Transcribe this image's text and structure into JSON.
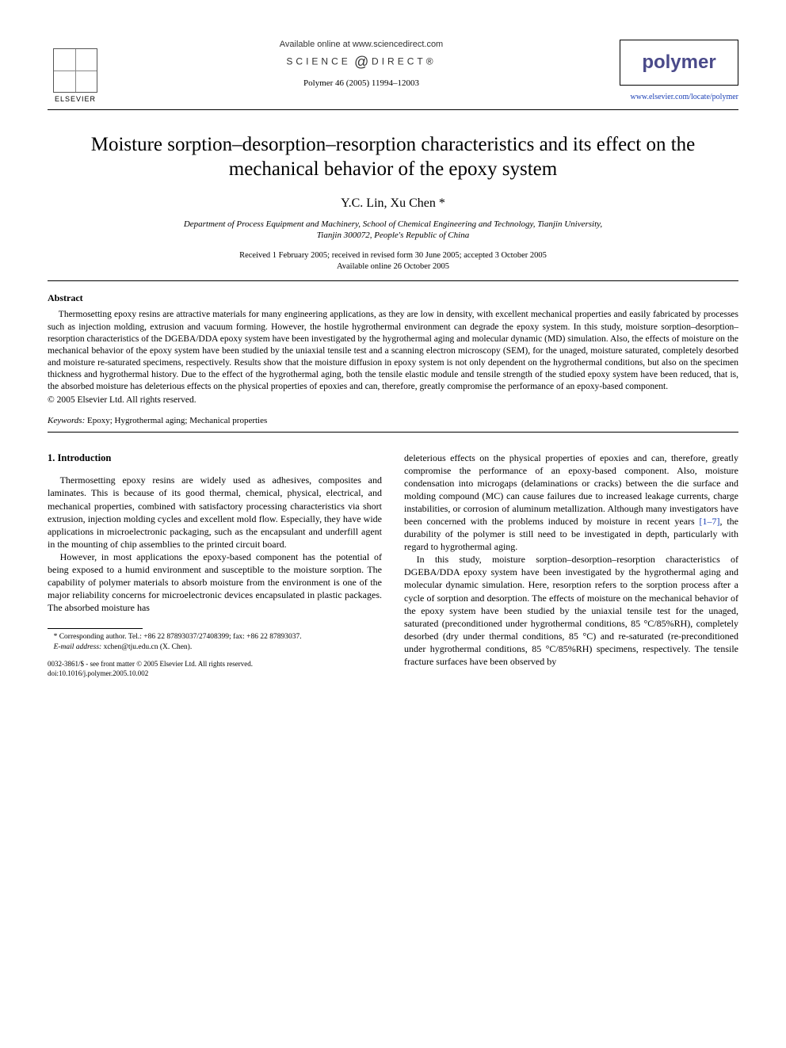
{
  "header": {
    "elsevier_label": "ELSEVIER",
    "available_online": "Available online at www.sciencedirect.com",
    "sd_left": "SCIENCE",
    "sd_right": "DIRECT®",
    "citation": "Polymer 46 (2005) 11994–12003",
    "journal_name": "polymer",
    "journal_url": "www.elsevier.com/locate/polymer"
  },
  "article": {
    "title": "Moisture sorption–desorption–resorption characteristics and its effect on the mechanical behavior of the epoxy system",
    "authors": "Y.C. Lin, Xu Chen *",
    "affiliation_line1": "Department of Process Equipment and Machinery, School of Chemical Engineering and Technology, Tianjin University,",
    "affiliation_line2": "Tianjin 300072, People's Republic of China",
    "received": "Received 1 February 2005; received in revised form 30 June 2005; accepted 3 October 2005",
    "available": "Available online 26 October 2005"
  },
  "abstract": {
    "heading": "Abstract",
    "body": "Thermosetting epoxy resins are attractive materials for many engineering applications, as they are low in density, with excellent mechanical properties and easily fabricated by processes such as injection molding, extrusion and vacuum forming. However, the hostile hygrothermal environment can degrade the epoxy system. In this study, moisture sorption–desorption–resorption characteristics of the DGEBA/DDA epoxy system have been investigated by the hygrothermal aging and molecular dynamic (MD) simulation. Also, the effects of moisture on the mechanical behavior of the epoxy system have been studied by the uniaxial tensile test and a scanning electron microscopy (SEM), for the unaged, moisture saturated, completely desorbed and moisture re-saturated specimens, respectively. Results show that the moisture diffusion in epoxy system is not only dependent on the hygrothermal conditions, but also on the specimen thickness and hygrothermal history. Due to the effect of the hygrothermal aging, both the tensile elastic module and tensile strength of the studied epoxy system have been reduced, that is, the absorbed moisture has deleterious effects on the physical properties of epoxies and can, therefore, greatly compromise the performance of an epoxy-based component.",
    "copyright": "© 2005 Elsevier Ltd. All rights reserved."
  },
  "keywords": {
    "label": "Keywords:",
    "list": " Epoxy; Hygrothermal aging; Mechanical properties"
  },
  "body": {
    "section_heading": "1. Introduction",
    "left_p1": "Thermosetting epoxy resins are widely used as adhesives, composites and laminates. This is because of its good thermal, chemical, physical, electrical, and mechanical properties, combined with satisfactory processing characteristics via short extrusion, injection molding cycles and excellent mold flow. Especially, they have wide applications in microelectronic packaging, such as the encapsulant and underfill agent in the mounting of chip assemblies to the printed circuit board.",
    "left_p2": "However, in most applications the epoxy-based component has the potential of being exposed to a humid environment and susceptible to the moisture sorption. The capability of polymer materials to absorb moisture from the environment is one of the major reliability concerns for microelectronic devices encapsulated in plastic packages. The absorbed moisture has",
    "right_p1_a": "deleterious effects on the physical properties of epoxies and can, therefore, greatly compromise the performance of an epoxy-based component. Also, moisture condensation into microgaps (delaminations or cracks) between the die surface and molding compound (MC) can cause failures due to increased leakage currents, charge instabilities, or corrosion of aluminum metallization. Although many investigators have been concerned with the problems induced by moisture in recent years ",
    "right_ref": "[1–7]",
    "right_p1_b": ", the durability of the polymer is still need to be investigated in depth, particularly with regard to hygrothermal aging.",
    "right_p2": "In this study, moisture sorption–desorption–resorption characteristics of DGEBA/DDA epoxy system have been investigated by the hygrothermal aging and molecular dynamic simulation. Here, resorption refers to the sorption process after a cycle of sorption and desorption. The effects of moisture on the mechanical behavior of the epoxy system have been studied by the uniaxial tensile test for the unaged, saturated (preconditioned under hygrothermal conditions, 85 °C/85%RH), completely desorbed (dry under thermal conditions, 85 °C) and re-saturated (re-preconditioned under hygrothermal conditions, 85 °C/85%RH) specimens, respectively. The tensile fracture surfaces have been observed by"
  },
  "footnotes": {
    "corr": "* Corresponding author. Tel.: +86 22 87893037/27408399; fax: +86 22 87893037.",
    "email_label": "E-mail address:",
    "email_value": " xchen@tju.edu.cn (X. Chen)."
  },
  "bottom": {
    "issn": "0032-3861/$ - see front matter © 2005 Elsevier Ltd. All rights reserved.",
    "doi": "doi:10.1016/j.polymer.2005.10.002"
  },
  "colors": {
    "link": "#1a3fb5",
    "journal": "#4a4a8a"
  }
}
